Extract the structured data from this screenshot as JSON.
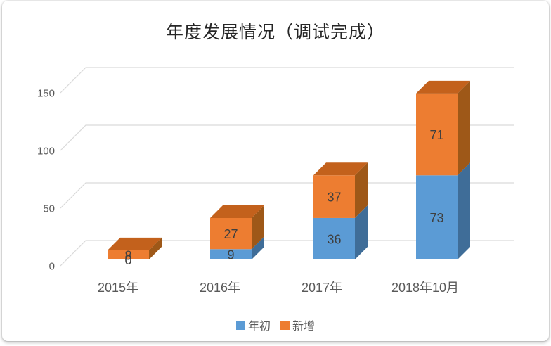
{
  "chart_data": {
    "type": "bar",
    "stacked": true,
    "style": "3d",
    "title": "年度发展情况（调试完成）",
    "categories": [
      "2015年",
      "2016年",
      "2017年",
      "2018年10月"
    ],
    "series": [
      {
        "name": "年初",
        "values": [
          0,
          9,
          36,
          73
        ],
        "color": "#5B9BD5",
        "color_side": "#3F6D98",
        "color_top": "#4B86BC"
      },
      {
        "name": "新增",
        "values": [
          8,
          27,
          37,
          71
        ],
        "color": "#ED7D31",
        "color_side": "#9E5818",
        "color_top": "#C3611C"
      }
    ],
    "y_ticks": [
      0,
      50,
      100,
      150
    ],
    "ylim": [
      0,
      150
    ],
    "xlabel": "",
    "ylabel": "",
    "grid": true,
    "data_labels": true,
    "legend_position": "bottom"
  },
  "colors": {
    "title_text": "#262626",
    "axis_text": "#595959",
    "data_label_text": "#3F3F3F",
    "gridline": "#D9D9D9",
    "background": "#FFFFFF"
  }
}
